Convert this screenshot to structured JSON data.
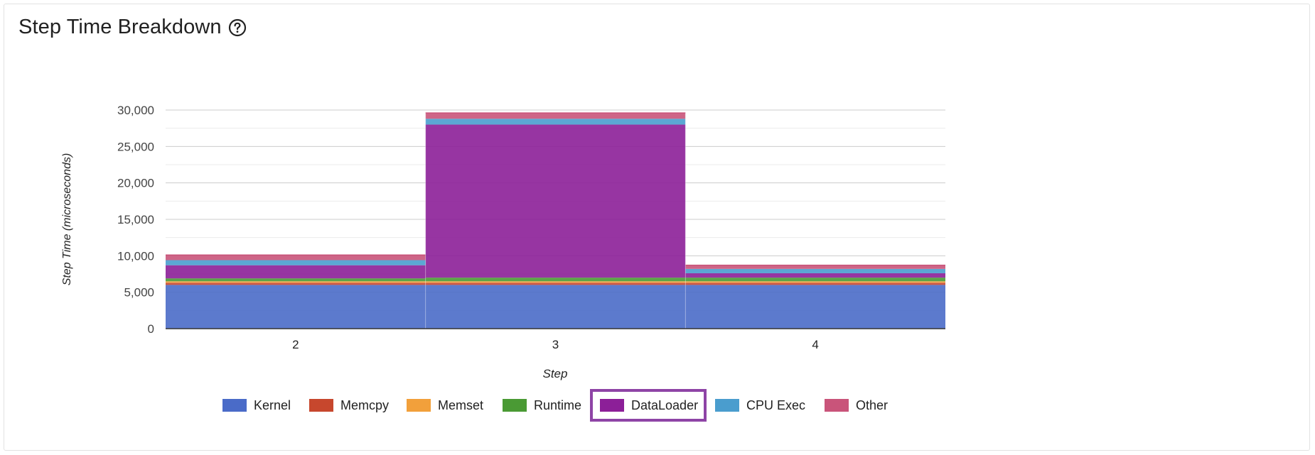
{
  "card": {
    "title": "Step Time Breakdown",
    "help_icon": "question-circle-icon"
  },
  "colors": {
    "Kernel": "#4a6bc8",
    "Memcpy": "#c7472d",
    "Memset": "#f2a03b",
    "Runtime": "#4a9a34",
    "DataLoader": "#8c1f98",
    "CPU Exec": "#4a9dce",
    "Other": "#c9547a"
  },
  "chart_data": {
    "type": "area",
    "stacked": true,
    "x": [
      "2",
      "3",
      "4"
    ],
    "series": [
      {
        "name": "Kernel",
        "values": [
          6000,
          6000,
          6000
        ]
      },
      {
        "name": "Memcpy",
        "values": [
          300,
          300,
          300
        ]
      },
      {
        "name": "Memset",
        "values": [
          200,
          200,
          200
        ]
      },
      {
        "name": "Runtime",
        "values": [
          400,
          500,
          500
        ]
      },
      {
        "name": "DataLoader",
        "values": [
          1800,
          21000,
          600
        ]
      },
      {
        "name": "CPU Exec",
        "values": [
          700,
          800,
          600
        ]
      },
      {
        "name": "Other",
        "values": [
          700,
          800,
          500
        ]
      }
    ],
    "xlabel": "Step",
    "ylabel": "Step Time (microseconds)",
    "ylim": [
      0,
      30000
    ],
    "yticks": [
      0,
      5000,
      10000,
      15000,
      20000,
      25000,
      30000
    ],
    "ytick_labels": [
      "0",
      "5,000",
      "10,000",
      "15,000",
      "20,000",
      "25,000",
      "30,000"
    ],
    "grid": true,
    "legend_position": "bottom",
    "selected_series": "DataLoader"
  }
}
